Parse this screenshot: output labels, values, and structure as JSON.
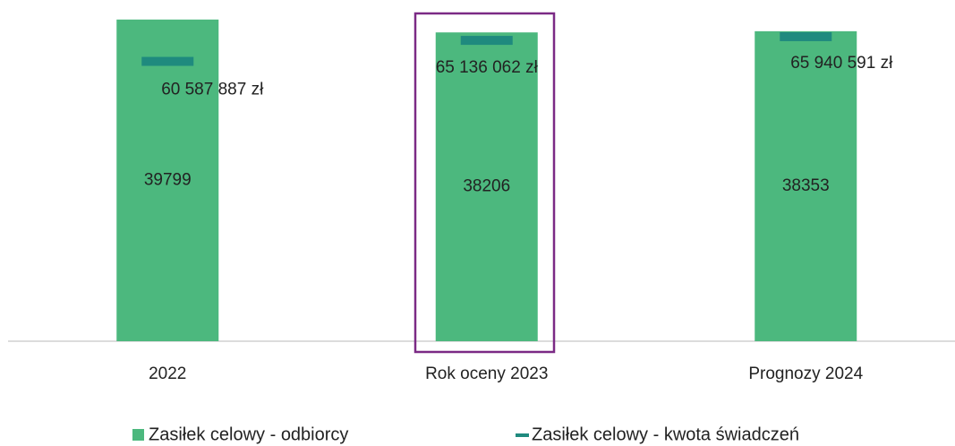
{
  "chart_data": {
    "type": "bar",
    "categories": [
      "2022",
      "Rok oceny 2023",
      "Prognozy 2024"
    ],
    "series": [
      {
        "name": "Zasiłek celowy - odbiorcy",
        "color": "#4cb87e",
        "values": [
          39799,
          38206,
          38353
        ]
      },
      {
        "name": "Zasiłek celowy - kwota świadczeń",
        "color": "#1f8a7e",
        "axis": "y2",
        "type": "marker",
        "values": [
          60587887,
          65136062,
          65940591
        ],
        "value_labels": [
          "60 587 887 zł",
          "65 136 062 zł",
          "65 940 591 zł"
        ]
      }
    ],
    "ylim": [
      0,
      40000
    ],
    "y2lim": [
      0,
      70000000
    ],
    "legend": "bottom"
  }
}
